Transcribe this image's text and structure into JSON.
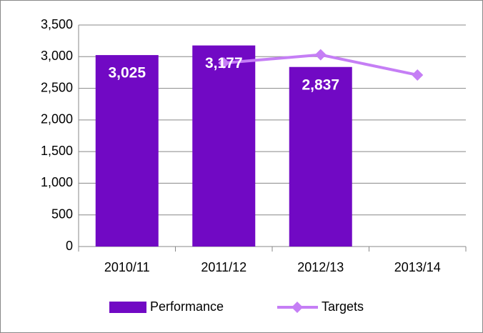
{
  "chart_data": {
    "type": "bar",
    "categories": [
      "2010/11",
      "2011/12",
      "2012/13",
      "2013/14"
    ],
    "series": [
      {
        "name": "Performance",
        "type": "bar",
        "color": "#7109c4",
        "values": [
          3025,
          3177,
          2837,
          null
        ],
        "value_labels": [
          "3,025",
          "3,177",
          "2,837",
          null
        ]
      },
      {
        "name": "Targets",
        "type": "line",
        "color": "#c57ef5",
        "values": [
          null,
          2900,
          3030,
          2710
        ]
      }
    ],
    "ylim": [
      0,
      3500
    ],
    "yticks": [
      0,
      500,
      {
        "value": 1000,
        "label": "1,000"
      },
      {
        "value": 1500,
        "label": "1,500"
      },
      {
        "value": 2000,
        "label": "2,000"
      },
      {
        "value": 2500,
        "label": "2,500"
      },
      {
        "value": 3000,
        "label": "3,000"
      },
      {
        "value": 3500,
        "label": "3,500"
      }
    ],
    "grid": true,
    "legend": "bottom"
  }
}
